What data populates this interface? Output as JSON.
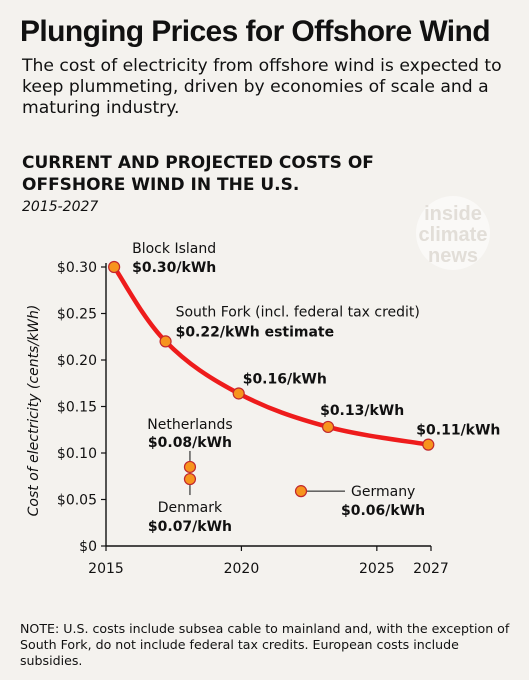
{
  "header": {
    "title": "Plunging Prices for Offshore Wind",
    "subtitle": "The cost of electricity from offshore wind is expected to keep plummeting, driven by economies of scale and a maturing industry."
  },
  "watermark": {
    "lines": [
      "inside",
      "climate",
      "news"
    ]
  },
  "colors": {
    "line": "#ee1c1c",
    "marker": "#f7941d",
    "marker_stroke": "#c1272d",
    "text": "#111111",
    "background": "#f4f2ee"
  },
  "footer": {
    "note": "NOTE: U.S. costs include subsea cable to mainland and, with the exception of South Fork, do not include federal tax credits. European costs include subsidies."
  },
  "chart_data": {
    "type": "line",
    "title": "CURRENT AND PROJECTED COSTS OF\nOFFSHORE WIND IN THE U.S.",
    "subtitle": "2015-2027",
    "xlabel": "",
    "ylabel": "Cost of electricity (cents/kWh)",
    "xlim": [
      2015,
      2027
    ],
    "ylim": [
      0,
      0.3
    ],
    "x_ticks": [
      2015,
      2020,
      2025,
      2027
    ],
    "y_ticks": [
      {
        "value": 0.3,
        "label": "$0.30"
      },
      {
        "value": 0.25,
        "label": "$0.25"
      },
      {
        "value": 0.2,
        "label": "$0.20"
      },
      {
        "value": 0.15,
        "label": "$0.15"
      },
      {
        "value": 0.1,
        "label": "$0.10"
      },
      {
        "value": 0.05,
        "label": "$0.05"
      },
      {
        "value": 0.0,
        "label": "$0"
      }
    ],
    "grid": false,
    "legend": "none",
    "series": [
      {
        "x": [
          2015.3,
          2017.2,
          2019.9,
          2023.2,
          2026.9
        ],
        "y": [
          0.3,
          0.22,
          0.164,
          0.128,
          0.109
        ],
        "labels": [
          {
            "name": "Block Island",
            "value": "$0.30/kWh"
          },
          {
            "name": "South Fork (incl. federal tax credit)",
            "value": "$0.22/kWh estimate"
          },
          {
            "name": "",
            "value": "$0.16/kWh"
          },
          {
            "name": "",
            "value": "$0.13/kWh"
          },
          {
            "name": "",
            "value": "$0.11/kWh"
          }
        ]
      }
    ],
    "points": [
      {
        "name": "Netherlands",
        "value": "$0.08/kWh",
        "x": 2018.1,
        "y": 0.085
      },
      {
        "name": "Denmark",
        "value": "$0.07/kWh",
        "x": 2018.1,
        "y": 0.072
      },
      {
        "name": "Germany",
        "value": "$0.06/kWh",
        "x": 2022.2,
        "y": 0.059
      }
    ]
  }
}
